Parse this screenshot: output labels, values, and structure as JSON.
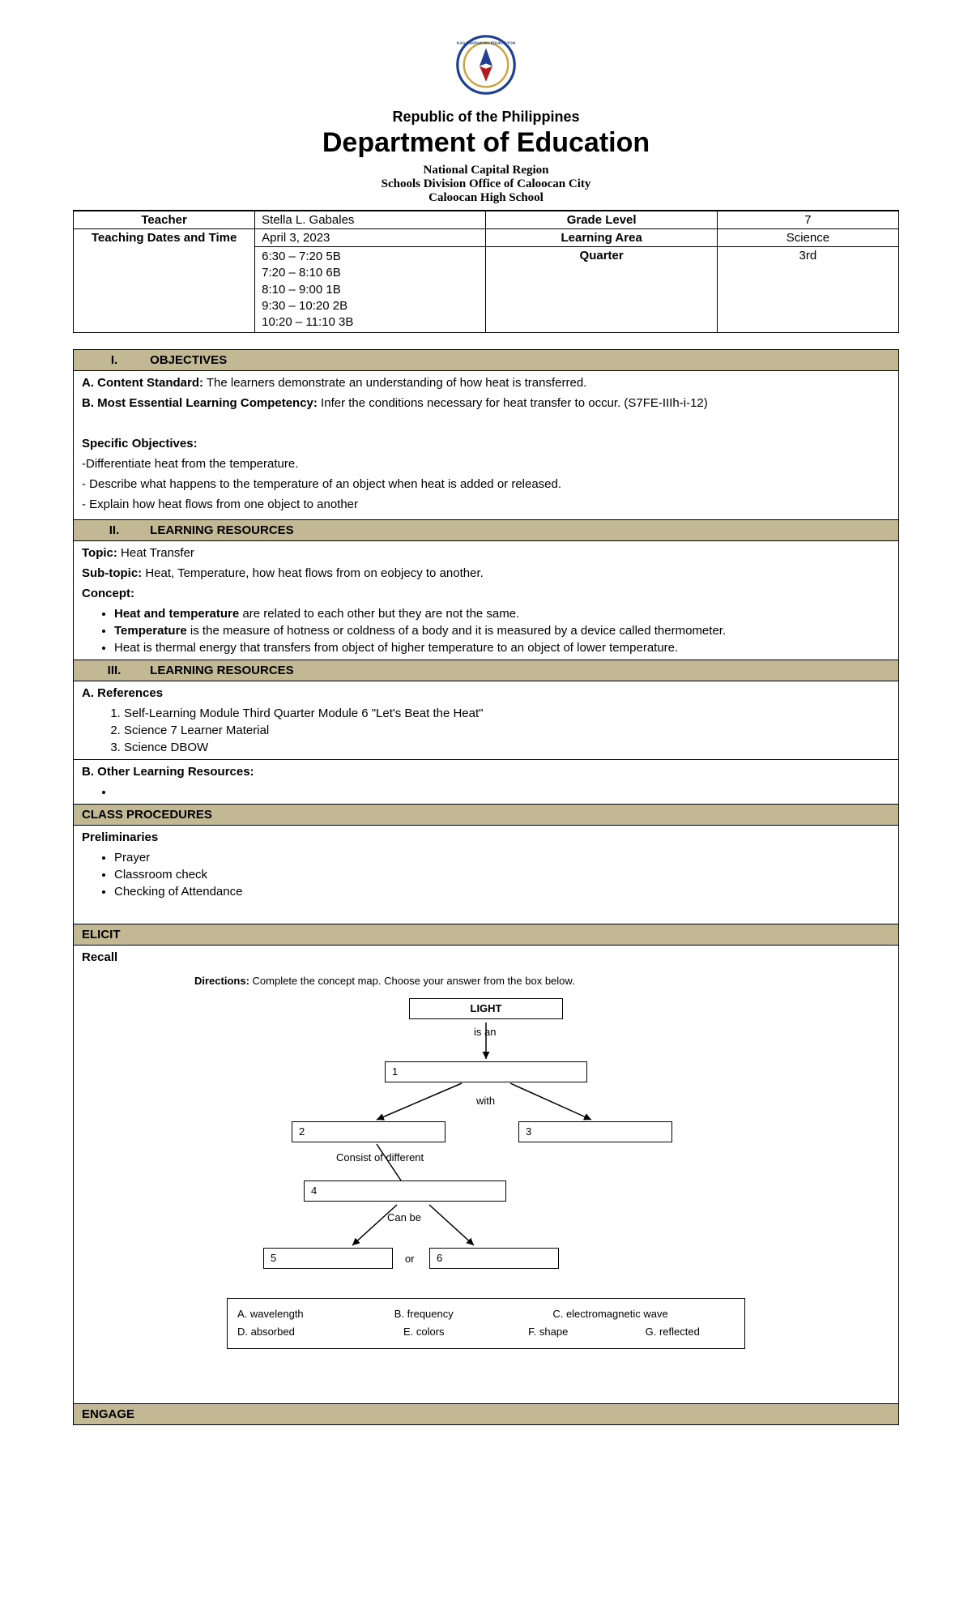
{
  "header": {
    "line1": "Republic of the Philippines",
    "line2": "Department of Education",
    "line3": "National Capital Region",
    "line4": "Schools Division Office of Caloocan City",
    "line5": "Caloocan High School"
  },
  "info": {
    "teacher_lbl": "Teacher",
    "teacher": "Stella L. Gabales",
    "grade_lbl": "Grade Level",
    "grade": "7",
    "dates_lbl": "Teaching Dates and Time",
    "date": "April 3, 2023",
    "area_lbl": "Learning Area",
    "area": "Science",
    "times": "6:30 – 7:20 5B\n7:20 – 8:10 6B\n8:10 – 9:00 1B\n9:30 – 10:20 2B\n10:20 – 11:10 3B",
    "quarter_lbl": "Quarter",
    "quarter": "3rd"
  },
  "sec1": {
    "roman": "I.",
    "title": "OBJECTIVES",
    "a_lbl": "A. Content Standard:",
    "a_txt": " The learners demonstrate an understanding of how heat is transferred.",
    "b_lbl": "B. Most Essential Learning Competency:",
    "b_txt": " Infer the conditions necessary for heat transfer to occur. (S7FE-IIIh-i-12)",
    "spec_lbl": "Specific Objectives:",
    "spec1": "-Differentiate heat from the temperature.",
    "spec2": "- Describe what happens to the temperature of an object when heat is added or released.",
    "spec3": "- Explain how heat flows from one object to another"
  },
  "sec2": {
    "roman": "II.",
    "title": "LEARNING RESOURCES",
    "topic_lbl": "Topic:",
    "topic": " Heat Transfer",
    "sub_lbl": "Sub-topic:",
    "sub": " Heat, Temperature, how heat flows from on eobjecy to another.",
    "concept_lbl": "Concept:",
    "c1a": "Heat and temperature",
    "c1b": " are related to each other but they are not the same.",
    "c2a": "Temperature",
    "c2b": " is the measure of hotness or coldness of a body and it is measured by a device called thermometer.",
    "c3": "Heat is thermal energy that transfers from object of higher temperature to an object of lower temperature."
  },
  "sec3": {
    "roman": "III.",
    "title": "LEARNING RESOURCES",
    "ref_lbl": "A. References",
    "r1": "Self-Learning Module Third Quarter Module 6 \"Let's Beat the Heat\"",
    "r2": "Science 7 Learner Material",
    "r3": "Science DBOW",
    "other_lbl": "B.  Other Learning Resources:"
  },
  "sec4": {
    "title": "CLASS PROCEDURES",
    "prelim": "Preliminaries",
    "p1": "Prayer",
    "p2": "Classroom check",
    "p3": "Checking of Attendance"
  },
  "sec5": {
    "title": "ELICIT",
    "recall": "Recall"
  },
  "cm": {
    "dir_lbl": "Directions:",
    "dir_txt": " Complete the concept map. Choose your answer from the box below.",
    "light": "LIGHT",
    "is_an": "is an",
    "n1": "1",
    "with": "with",
    "n2": "2",
    "n3": "3",
    "consist": "Consist of different",
    "n4": "4",
    "canbe": "Can be",
    "n5": "5",
    "or": "or",
    "n6": "6",
    "ans": {
      "a": "A. wavelength",
      "b": "B. frequency",
      "c": "C. electromagnetic wave",
      "d": "D. absorbed",
      "e": "E. colors",
      "f": "F. shape",
      "g": "G. reflected"
    }
  },
  "sec6": {
    "title": "ENGAGE"
  },
  "colors": {
    "header_bg": "#c2b894",
    "border": "#000000",
    "text": "#000000"
  }
}
